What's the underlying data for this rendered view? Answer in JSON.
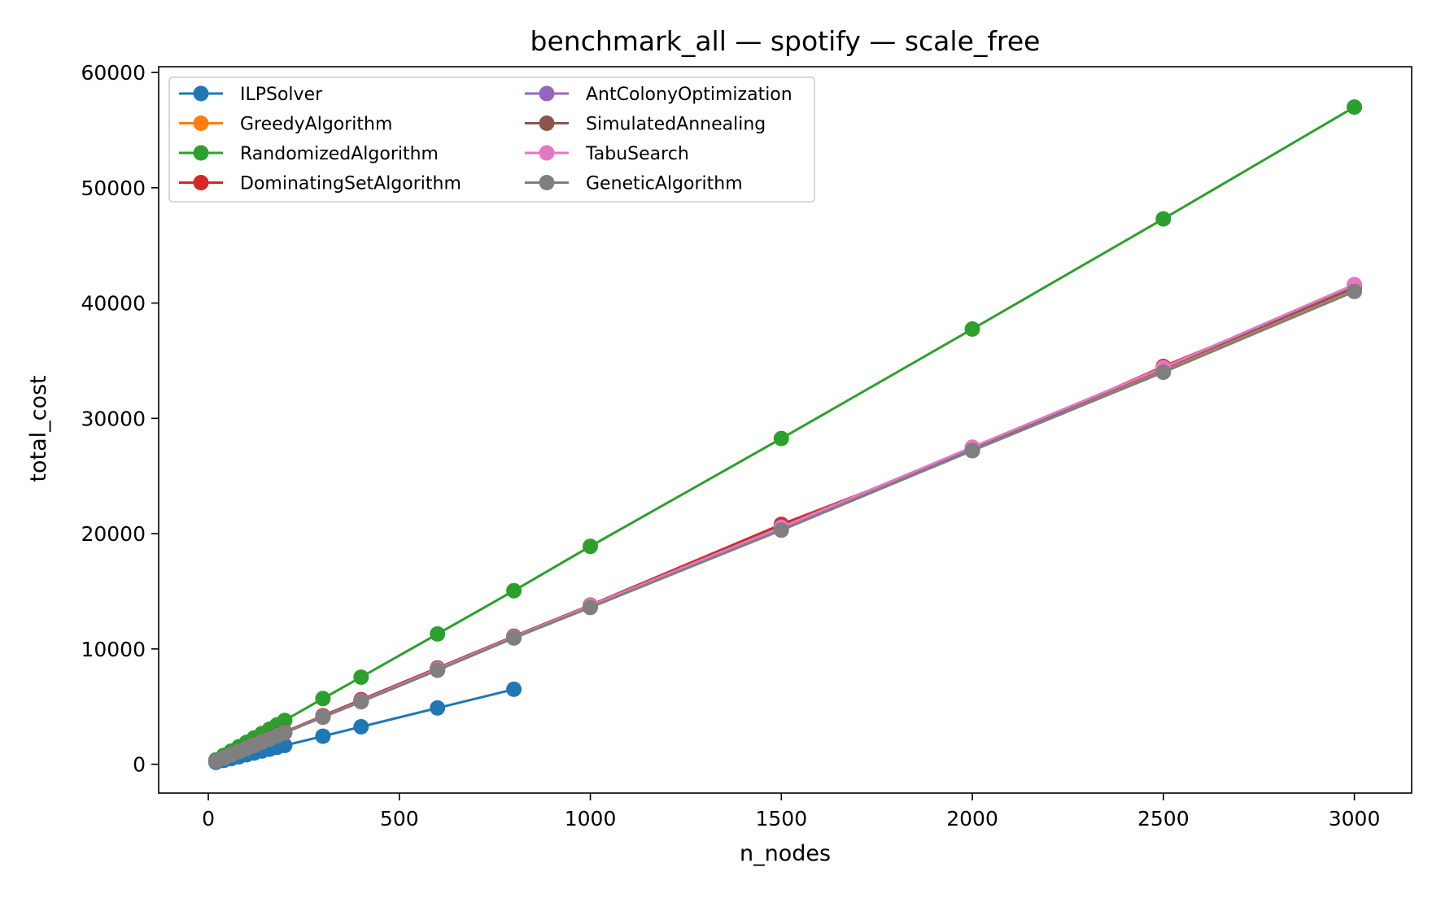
{
  "chart_data": {
    "type": "line",
    "title": "benchmark_all — spotify — scale_free",
    "xlabel": "n_nodes",
    "ylabel": "total_cost",
    "xlim": [
      -130,
      3150
    ],
    "ylim": [
      -2500,
      60500
    ],
    "xticks": [
      0,
      500,
      1000,
      1500,
      2000,
      2500,
      3000
    ],
    "xtick_labels": [
      "0",
      "500",
      "1000",
      "1500",
      "2000",
      "2500",
      "3000"
    ],
    "yticks": [
      0,
      10000,
      20000,
      30000,
      40000,
      50000,
      60000
    ],
    "ytick_labels": [
      "0",
      "10000",
      "20000",
      "30000",
      "40000",
      "50000",
      "60000"
    ],
    "grid": false,
    "legend_position": "top-left",
    "legend_columns": 2,
    "series": [
      {
        "name": "ILPSolver",
        "color": "#1f77b4",
        "x": [
          20,
          40,
          60,
          80,
          100,
          120,
          140,
          160,
          180,
          200,
          300,
          400,
          600,
          800
        ],
        "y": [
          170,
          330,
          490,
          650,
          820,
          980,
          1140,
          1300,
          1470,
          1630,
          2430,
          3250,
          4880,
          6500
        ]
      },
      {
        "name": "GreedyAlgorithm",
        "color": "#ff7f0e",
        "x": [
          20,
          40,
          60,
          80,
          100,
          120,
          140,
          160,
          180,
          200,
          300,
          400,
          600,
          800,
          1000,
          1500,
          2000,
          2500,
          3000
        ],
        "y": [
          280,
          550,
          830,
          1100,
          1380,
          1650,
          1930,
          2200,
          2480,
          2750,
          4130,
          5500,
          8280,
          11050,
          13750,
          20600,
          27300,
          34200,
          41200
        ]
      },
      {
        "name": "RandomizedAlgorithm",
        "color": "#2ca02c",
        "x": [
          20,
          40,
          60,
          80,
          100,
          120,
          140,
          160,
          180,
          200,
          300,
          400,
          600,
          800,
          1000,
          1500,
          2000,
          2500,
          3000
        ],
        "y": [
          380,
          760,
          1140,
          1520,
          1900,
          2280,
          2660,
          3040,
          3420,
          3800,
          5700,
          7550,
          11300,
          15050,
          18900,
          28250,
          37750,
          47300,
          57000
        ]
      },
      {
        "name": "DominatingSetAlgorithm",
        "color": "#d62728",
        "x": [
          20,
          40,
          60,
          80,
          100,
          120,
          140,
          160,
          180,
          200,
          300,
          400,
          600,
          800,
          1000,
          1500,
          2000,
          2500,
          3000
        ],
        "y": [
          280,
          560,
          840,
          1120,
          1400,
          1680,
          1960,
          2240,
          2520,
          2800,
          4200,
          5600,
          8350,
          11100,
          13800,
          20800,
          27200,
          34500,
          41300
        ]
      },
      {
        "name": "AntColonyOptimization",
        "color": "#9467bd",
        "x": [
          20,
          40,
          60,
          80,
          100,
          120,
          140,
          160,
          180,
          200,
          300,
          400,
          600,
          800,
          1000,
          1500,
          2000,
          2500,
          3000
        ],
        "y": [
          275,
          550,
          825,
          1100,
          1375,
          1650,
          1925,
          2200,
          2475,
          2750,
          4120,
          5480,
          8250,
          11020,
          13700,
          20500,
          27400,
          34300,
          41300
        ]
      },
      {
        "name": "SimulatedAnnealing",
        "color": "#8c564b",
        "x": [
          20,
          40,
          60,
          80,
          100,
          120,
          140,
          160,
          180,
          200,
          300,
          400,
          600,
          800,
          1000,
          1500,
          2000,
          2500,
          3000
        ],
        "y": [
          278,
          555,
          833,
          1110,
          1388,
          1665,
          1943,
          2220,
          2498,
          2775,
          4150,
          5520,
          8300,
          11080,
          13750,
          20600,
          27450,
          34350,
          41350
        ]
      },
      {
        "name": "TabuSearch",
        "color": "#e377c2",
        "x": [
          20,
          40,
          60,
          80,
          100,
          120,
          140,
          160,
          180,
          200,
          300,
          400,
          600,
          800,
          1000,
          1500,
          2000,
          2500,
          3000
        ],
        "y": [
          270,
          545,
          820,
          1095,
          1370,
          1645,
          1920,
          2195,
          2470,
          2745,
          4110,
          5470,
          8250,
          11020,
          13750,
          20550,
          27500,
          34400,
          41600
        ]
      },
      {
        "name": "GeneticAlgorithm",
        "color": "#7f7f7f",
        "x": [
          20,
          40,
          60,
          80,
          100,
          120,
          140,
          160,
          180,
          200,
          300,
          400,
          600,
          800,
          1000,
          1500,
          2000,
          2500,
          3000
        ],
        "y": [
          272,
          545,
          817,
          1090,
          1362,
          1635,
          1907,
          2180,
          2452,
          2725,
          4080,
          5420,
          8150,
          10950,
          13600,
          20300,
          27200,
          34000,
          41000
        ]
      }
    ]
  }
}
